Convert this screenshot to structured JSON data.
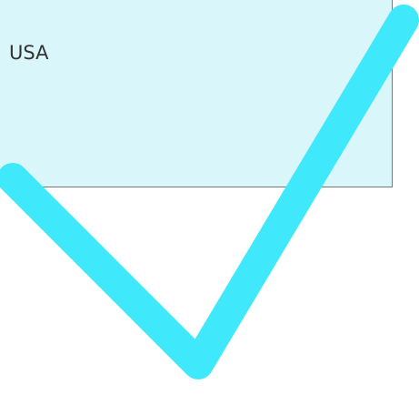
{
  "option": {
    "label": "USA"
  }
}
